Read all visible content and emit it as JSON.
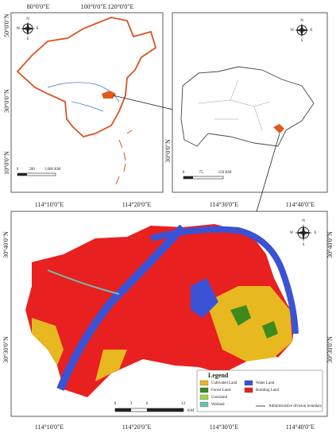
{
  "panels": {
    "china": {
      "lon_labels": [
        "80°0'0\"E",
        "100°0'0\"E",
        "120°0'0\"E"
      ],
      "lat_labels": [
        "50°0'0\"N",
        "30°0'0\"N",
        "10°0'0\"N"
      ],
      "scale": [
        "0",
        "500",
        "1,000 KM"
      ],
      "compass": [
        "N",
        "S",
        "W",
        "E"
      ]
    },
    "hubei": {
      "lat_labels": [
        "30°0'0\"N"
      ],
      "scale": [
        "0",
        "75",
        "150 KM"
      ],
      "compass": [
        "N",
        "S",
        "W",
        "E"
      ]
    },
    "wuhan": {
      "top_labels": [
        "114°10'0\"E",
        "114°20'0\"E",
        "114°30'0\"E",
        "114°40'0\"E"
      ],
      "bottom_labels": [
        "114°10'0\"E",
        "114°20'0\"E",
        "114°30'0\"E",
        "114°40'0\"E"
      ],
      "left_labels": [
        "30°40'0\"N",
        "30°30'0\"N"
      ],
      "right_labels": [
        "30°40'0\"N",
        "30°30'0\"N"
      ],
      "scale": [
        "0",
        "3",
        "6",
        "12",
        "KM"
      ],
      "compass": [
        "N",
        "S",
        "W",
        "E"
      ]
    }
  },
  "legend": {
    "title": "Legend",
    "items": [
      {
        "label": "Cultivated Land",
        "color": "#e8b820"
      },
      {
        "label": "Forest Land",
        "color": "#3d8a1a"
      },
      {
        "label": "Grassland",
        "color": "#9ad64a"
      },
      {
        "label": "Wetland",
        "color": "#6fc0b0"
      },
      {
        "label": "Water Land",
        "color": "#3a52d6"
      },
      {
        "label": "Building Land",
        "color": "#e82020"
      }
    ],
    "boundary": "Administrative division boundary"
  }
}
